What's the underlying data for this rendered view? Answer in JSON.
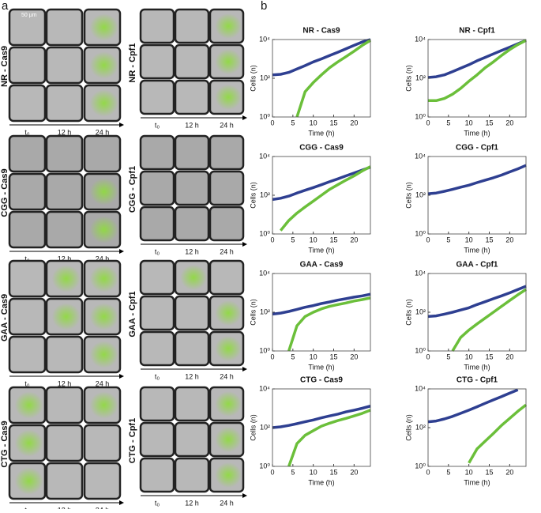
{
  "panel_a": {
    "label": "a",
    "scale_bar": "50 μm",
    "time_labels": [
      "t₀",
      "12 h",
      "24 h"
    ],
    "groups": [
      {
        "label": "NR - Cas9"
      },
      {
        "label": "NR - Cpf1"
      },
      {
        "label": "CGG - Cas9"
      },
      {
        "label": "CGG - Cpf1"
      },
      {
        "label": "GAA - Cas9"
      },
      {
        "label": "GAA - Cpf1"
      },
      {
        "label": "CTG - Cas9"
      },
      {
        "label": "CTG - Cpf1"
      }
    ]
  },
  "panel_b": {
    "label": "b"
  },
  "chart_data": [
    {
      "type": "line",
      "title": "NR - Cas9",
      "xlabel": "Time (h)",
      "ylabel": "Cells (n)",
      "log_y": true,
      "x": [
        0,
        2,
        4,
        6,
        8,
        10,
        12,
        14,
        16,
        18,
        20,
        22,
        24
      ],
      "xlim": [
        0,
        24
      ],
      "ylim": [
        1,
        10000
      ],
      "xticks": [
        0,
        5,
        10,
        15,
        20
      ],
      "yticks": [
        {
          "value": 1,
          "label": "10⁰"
        },
        {
          "value": 100,
          "label": "10²"
        },
        {
          "value": 10000,
          "label": "10⁴"
        }
      ],
      "series": [
        {
          "color": "#2e3f91",
          "values": [
            150,
            160,
            200,
            300,
            450,
            700,
            1000,
            1500,
            2200,
            3300,
            5000,
            7500,
            10000
          ]
        },
        {
          "color": "#6bbf3a",
          "values": [
            null,
            null,
            null,
            1,
            20,
            60,
            150,
            350,
            700,
            1300,
            2500,
            5000,
            9000
          ]
        }
      ]
    },
    {
      "type": "line",
      "title": "NR - Cpf1",
      "xlabel": "Time (h)",
      "ylabel": "Cells (n)",
      "log_y": true,
      "x": [
        0,
        2,
        4,
        6,
        8,
        10,
        12,
        14,
        16,
        18,
        20,
        22,
        24
      ],
      "xlim": [
        0,
        24
      ],
      "ylim": [
        1,
        10000
      ],
      "xticks": [
        0,
        5,
        10,
        15,
        20
      ],
      "yticks": [
        {
          "value": 1,
          "label": "10⁰"
        },
        {
          "value": 100,
          "label": "10²"
        },
        {
          "value": 10000,
          "label": "10⁴"
        }
      ],
      "series": [
        {
          "color": "#2e3f91",
          "values": [
            110,
            120,
            150,
            220,
            330,
            500,
            800,
            1200,
            1800,
            2700,
            4000,
            6000,
            9000
          ]
        },
        {
          "color": "#6bbf3a",
          "values": [
            7,
            7,
            9,
            15,
            30,
            70,
            150,
            350,
            700,
            1500,
            3000,
            5500,
            9000
          ]
        }
      ]
    },
    {
      "type": "line",
      "title": "CGG - Cas9",
      "xlabel": "Time (h)",
      "ylabel": "Cells (n)",
      "log_y": true,
      "x": [
        0,
        2,
        4,
        6,
        8,
        10,
        12,
        14,
        16,
        18,
        20,
        22,
        24
      ],
      "xlim": [
        0,
        24
      ],
      "ylim": [
        1,
        10000
      ],
      "xticks": [
        0,
        5,
        10,
        15,
        20
      ],
      "yticks": [
        {
          "value": 1,
          "label": "10⁰"
        },
        {
          "value": 100,
          "label": "10²"
        },
        {
          "value": 10000,
          "label": "10⁴"
        }
      ],
      "series": [
        {
          "color": "#2e3f91",
          "values": [
            60,
            70,
            90,
            130,
            180,
            250,
            350,
            500,
            700,
            1000,
            1400,
            2000,
            2800
          ]
        },
        {
          "color": "#6bbf3a",
          "values": [
            null,
            1.5,
            5,
            12,
            25,
            50,
            100,
            200,
            350,
            600,
            1000,
            1800,
            3000
          ]
        }
      ]
    },
    {
      "type": "line",
      "title": "CGG - Cpf1",
      "xlabel": "Time (h)",
      "ylabel": "Cells (n)",
      "log_y": true,
      "x": [
        0,
        2,
        4,
        6,
        8,
        10,
        12,
        14,
        16,
        18,
        20,
        22,
        24
      ],
      "xlim": [
        0,
        24
      ],
      "ylim": [
        1,
        10000
      ],
      "xticks": [
        0,
        5,
        10,
        15,
        20
      ],
      "yticks": [
        {
          "value": 1,
          "label": "10⁰"
        },
        {
          "value": 100,
          "label": "10²"
        },
        {
          "value": 10000,
          "label": "10⁴"
        }
      ],
      "series": [
        {
          "color": "#2e3f91",
          "values": [
            120,
            130,
            160,
            200,
            260,
            330,
            450,
            600,
            800,
            1100,
            1600,
            2300,
            3500
          ]
        }
      ]
    },
    {
      "type": "line",
      "title": "GAA - Cas9",
      "xlabel": "Time (h)",
      "ylabel": "Cells (n)",
      "log_y": true,
      "x": [
        0,
        2,
        4,
        6,
        8,
        10,
        12,
        14,
        16,
        18,
        20,
        22,
        24
      ],
      "xlim": [
        0,
        24
      ],
      "ylim": [
        1,
        10000
      ],
      "xticks": [
        0,
        5,
        10,
        15,
        20
      ],
      "yticks": [
        {
          "value": 1,
          "label": "10⁰"
        },
        {
          "value": 100,
          "label": "10²"
        },
        {
          "value": 10000,
          "label": "10⁴"
        }
      ],
      "series": [
        {
          "color": "#2e3f91",
          "values": [
            80,
            90,
            110,
            140,
            180,
            220,
            280,
            340,
            420,
            500,
            600,
            700,
            850
          ]
        },
        {
          "color": "#6bbf3a",
          "values": [
            null,
            null,
            1,
            20,
            60,
            100,
            150,
            200,
            250,
            300,
            380,
            450,
            550
          ]
        }
      ]
    },
    {
      "type": "line",
      "title": "GAA - Cpf1",
      "xlabel": "Time (h)",
      "ylabel": "Cells (n)",
      "log_y": true,
      "x": [
        0,
        2,
        4,
        6,
        8,
        10,
        12,
        14,
        16,
        18,
        20,
        22,
        24
      ],
      "xlim": [
        0,
        24
      ],
      "ylim": [
        1,
        10000
      ],
      "xticks": [
        0,
        5,
        10,
        15,
        20
      ],
      "yticks": [
        {
          "value": 1,
          "label": "10⁰"
        },
        {
          "value": 100,
          "label": "10²"
        },
        {
          "value": 10000,
          "label": "10⁴"
        }
      ],
      "series": [
        {
          "color": "#2e3f91",
          "values": [
            60,
            65,
            80,
            100,
            130,
            170,
            250,
            350,
            500,
            700,
            1000,
            1500,
            2200
          ]
        },
        {
          "color": "#6bbf3a",
          "values": [
            null,
            null,
            null,
            1,
            5,
            12,
            25,
            50,
            100,
            200,
            400,
            800,
            1500
          ]
        }
      ]
    },
    {
      "type": "line",
      "title": "CTG - Cas9",
      "xlabel": "Time (h)",
      "ylabel": "Cells (n)",
      "log_y": true,
      "x": [
        0,
        2,
        4,
        6,
        8,
        10,
        12,
        14,
        16,
        18,
        20,
        22,
        24
      ],
      "xlim": [
        0,
        24
      ],
      "ylim": [
        1,
        10000
      ],
      "xticks": [
        0,
        5,
        10,
        15,
        20
      ],
      "yticks": [
        {
          "value": 1,
          "label": "10⁰"
        },
        {
          "value": 100,
          "label": "10²"
        },
        {
          "value": 10000,
          "label": "10⁴"
        }
      ],
      "series": [
        {
          "color": "#2e3f91",
          "values": [
            100,
            110,
            130,
            160,
            200,
            250,
            320,
            400,
            500,
            650,
            800,
            1000,
            1300
          ]
        },
        {
          "color": "#6bbf3a",
          "values": [
            null,
            null,
            1,
            15,
            40,
            70,
            120,
            170,
            230,
            300,
            400,
            550,
            800
          ]
        }
      ]
    },
    {
      "type": "line",
      "title": "CTG - Cpf1",
      "xlabel": "Time (h)",
      "ylabel": "Cells (n)",
      "log_y": true,
      "x": [
        0,
        2,
        4,
        6,
        8,
        10,
        12,
        14,
        16,
        18,
        20,
        22,
        24
      ],
      "xlim": [
        0,
        24
      ],
      "ylim": [
        1,
        10000
      ],
      "xticks": [
        0,
        5,
        10,
        15,
        20
      ],
      "yticks": [
        {
          "value": 1,
          "label": "10⁰"
        },
        {
          "value": 100,
          "label": "10²"
        },
        {
          "value": 10000,
          "label": "10⁴"
        }
      ],
      "series": [
        {
          "color": "#2e3f91",
          "values": [
            200,
            220,
            280,
            380,
            550,
            800,
            1200,
            1800,
            2700,
            4000,
            6000,
            9000,
            null
          ]
        },
        {
          "color": "#6bbf3a",
          "values": [
            null,
            null,
            null,
            null,
            null,
            1.5,
            8,
            20,
            50,
            130,
            300,
            700,
            1500
          ]
        }
      ]
    }
  ]
}
